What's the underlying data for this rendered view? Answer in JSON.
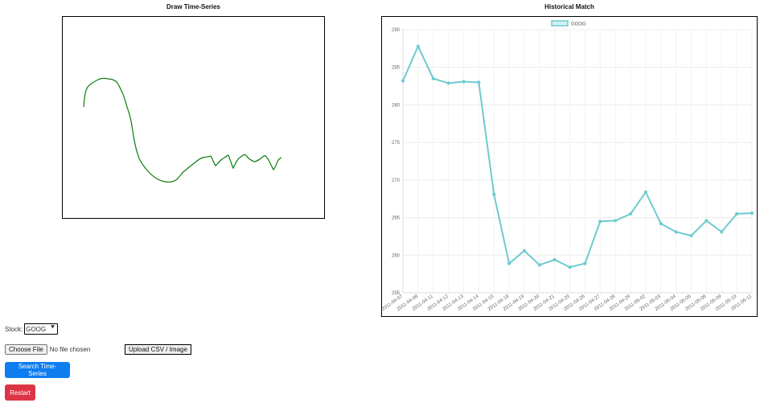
{
  "draw": {
    "title": "Draw Time-Series"
  },
  "match": {
    "title": "Historical Match"
  },
  "controls": {
    "stock_label": "Stock:",
    "stock_selected": "GOOG",
    "choose_file_label": "Choose File",
    "no_file_text": "No file chosen",
    "upload_label": "Upload CSV / Image",
    "search_label": "Search Time-Series",
    "restart_label": "Restart",
    "search_color": "#0d7df0",
    "restart_color": "#dc3545"
  },
  "chart_data": {
    "type": "line",
    "title": "",
    "legend_position": "top",
    "grid": true,
    "ylim": [
      255,
      290
    ],
    "yticks": [
      255,
      260,
      265,
      270,
      275,
      280,
      285,
      290
    ],
    "x": [
      "2011-04-07",
      "2011-04-08",
      "2011-04-11",
      "2011-04-12",
      "2011-04-13",
      "2011-04-14",
      "2011-04-15",
      "2011-04-18",
      "2011-04-19",
      "2011-04-20",
      "2011-04-21",
      "2011-04-25",
      "2011-04-26",
      "2011-04-27",
      "2011-04-28",
      "2011-04-29",
      "2011-05-02",
      "2011-05-03",
      "2011-05-04",
      "2011-05-05",
      "2011-05-06",
      "2011-05-09",
      "2011-05-10",
      "2011-05-11"
    ],
    "series": [
      {
        "name": "GOOG",
        "color": "#6dcbd0",
        "values": [
          283.2,
          287.8,
          283.5,
          282.9,
          283.1,
          283.0,
          268.1,
          258.9,
          260.6,
          258.7,
          259.4,
          258.4,
          258.9,
          264.5,
          264.6,
          265.5,
          268.4,
          264.2,
          263.1,
          262.6,
          264.6,
          263.1,
          265.5,
          265.6
        ]
      }
    ]
  }
}
